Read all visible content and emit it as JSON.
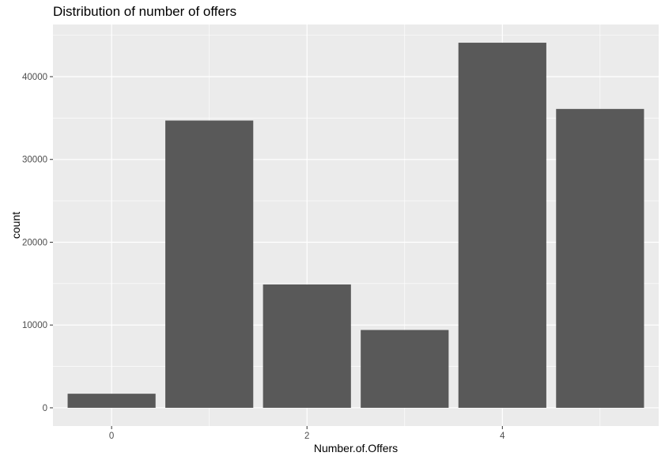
{
  "chart_data": {
    "type": "bar",
    "title": "Distribution of number of offers",
    "xlabel": "Number.of.Offers",
    "ylabel": "count",
    "x": [
      0,
      1,
      2,
      3,
      4,
      5
    ],
    "values": [
      1700,
      34700,
      14900,
      9400,
      44100,
      36100
    ],
    "x_ticks": [
      0,
      2,
      4
    ],
    "y_ticks": [
      0,
      10000,
      20000,
      30000,
      40000
    ],
    "xlim": [
      -0.6,
      5.6
    ],
    "ylim": [
      -2200,
      46300
    ],
    "grid": true,
    "colors": {
      "bar": "#595959",
      "panel": "#ebebeb",
      "grid": "#ffffff"
    }
  }
}
